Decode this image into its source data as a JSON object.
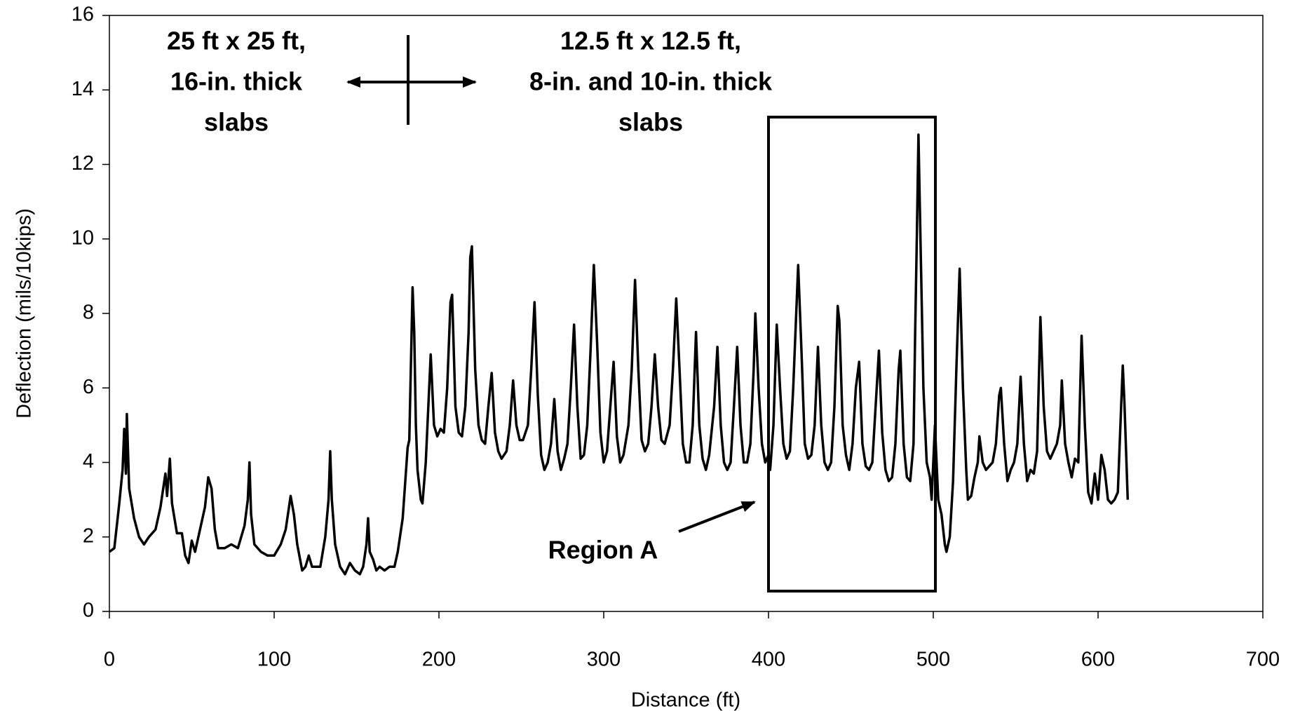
{
  "chart_data": {
    "type": "line",
    "x_label": "Distance (ft)",
    "y_label": "Deflection (mils/10kips)",
    "annotations": [
      {
        "lines": [
          "25 ft x 25 ft,",
          "16-in. thick",
          "slabs"
        ]
      },
      {
        "lines": [
          "12.5 ft x 12.5 ft,",
          "8-in. and 10-in. thick",
          "slabs"
        ]
      },
      {
        "lines": [
          "Region A"
        ]
      }
    ],
    "xlim": [
      0,
      700
    ],
    "xticks": [
      0,
      100,
      200,
      300,
      400,
      500,
      600,
      700
    ],
    "ylim": [
      0,
      16
    ],
    "yticks": [
      0,
      2,
      4,
      6,
      8,
      10,
      12,
      14,
      16
    ],
    "grid": false,
    "series": [
      {
        "color": "#000000",
        "x": [
          0,
          3,
          6,
          8,
          9,
          10,
          10.6,
          12,
          15,
          18,
          21,
          24,
          28,
          31,
          34,
          35,
          36.7,
          38,
          41,
          44,
          46,
          48,
          50,
          52,
          55,
          58,
          60,
          62,
          64,
          66,
          70,
          74,
          78,
          82,
          84,
          85,
          86,
          88,
          92,
          96,
          100,
          104,
          107,
          110,
          112,
          114,
          117,
          119,
          121,
          123,
          125,
          128,
          131,
          133,
          134,
          135,
          137,
          140,
          143,
          146,
          149,
          152,
          154,
          156,
          157,
          158,
          160,
          162,
          164,
          167,
          170,
          173,
          175,
          178,
          181,
          182,
          184,
          185,
          186,
          187,
          189,
          190,
          192,
          195,
          197,
          199,
          201,
          203,
          205,
          207,
          208,
          210,
          212,
          214,
          216,
          218,
          219,
          220,
          222,
          224,
          226,
          228,
          230,
          232,
          234,
          236,
          238,
          241,
          243,
          245,
          247,
          249,
          251,
          254,
          256,
          258,
          260,
          262,
          264,
          266,
          268,
          270,
          272,
          274,
          276,
          278,
          280,
          282,
          284,
          286,
          288,
          290,
          292,
          294,
          296,
          298,
          300,
          302,
          304,
          306,
          308,
          310,
          312,
          315,
          317,
          319,
          321,
          323,
          325,
          327,
          329,
          331,
          333,
          335,
          337,
          340,
          342,
          344,
          346,
          348,
          350,
          352,
          354,
          356,
          358,
          360,
          362,
          364,
          367,
          369,
          371,
          373,
          375,
          377,
          379,
          381,
          383,
          385,
          387,
          389,
          391,
          392,
          394,
          396,
          398,
          400,
          401,
          403,
          405,
          407,
          409,
          411,
          413,
          415,
          418,
          420,
          422,
          424,
          426,
          428,
          430,
          432,
          434,
          436,
          438,
          440,
          442,
          443,
          445,
          447,
          449,
          451,
          453,
          455,
          457,
          459,
          461,
          463,
          465,
          467,
          469,
          471,
          473,
          475,
          477,
          479,
          480,
          482,
          484,
          486,
          488,
          489,
          490,
          491,
          492,
          494,
          496,
          498,
          499,
          501,
          503,
          505,
          507,
          508,
          510,
          512,
          514,
          516,
          518,
          520,
          521,
          523,
          525,
          527,
          528,
          530,
          532,
          534,
          536,
          538,
          540,
          541,
          543,
          545,
          547,
          549,
          551,
          553,
          555,
          557,
          559,
          561,
          563,
          565,
          567,
          569,
          571,
          573,
          575,
          577,
          578,
          580,
          582,
          584,
          586,
          588,
          590,
          592,
          594,
          596,
          598,
          600,
          602,
          604,
          606,
          608,
          610,
          612,
          614,
          615,
          616,
          618
        ],
        "values": [
          1.6,
          1.7,
          2.9,
          3.8,
          4.9,
          3.7,
          5.3,
          3.3,
          2.5,
          2.0,
          1.8,
          2.0,
          2.2,
          2.8,
          3.7,
          3.1,
          4.1,
          2.9,
          2.1,
          2.1,
          1.5,
          1.3,
          1.9,
          1.6,
          2.2,
          2.8,
          3.6,
          3.3,
          2.2,
          1.7,
          1.7,
          1.8,
          1.7,
          2.3,
          3.0,
          4.0,
          2.6,
          1.8,
          1.6,
          1.5,
          1.5,
          1.8,
          2.2,
          3.1,
          2.6,
          1.8,
          1.1,
          1.2,
          1.5,
          1.2,
          1.2,
          1.2,
          2.0,
          3.0,
          4.3,
          3.0,
          1.8,
          1.2,
          1.0,
          1.3,
          1.1,
          1.0,
          1.2,
          1.8,
          2.5,
          1.6,
          1.4,
          1.1,
          1.2,
          1.1,
          1.2,
          1.2,
          1.6,
          2.5,
          4.4,
          4.6,
          8.7,
          7.5,
          5.0,
          3.8,
          3.0,
          2.9,
          4.0,
          6.9,
          5.0,
          4.7,
          4.9,
          4.8,
          6.0,
          8.3,
          8.5,
          5.5,
          4.8,
          4.7,
          5.5,
          7.5,
          9.5,
          9.8,
          6.5,
          5.0,
          4.6,
          4.5,
          5.5,
          6.4,
          4.8,
          4.3,
          4.1,
          4.3,
          5.0,
          6.2,
          5.0,
          4.6,
          4.6,
          5.0,
          6.5,
          8.3,
          5.8,
          4.2,
          3.8,
          4.0,
          4.5,
          5.7,
          4.3,
          3.8,
          4.1,
          4.5,
          6.0,
          7.7,
          5.5,
          4.1,
          4.2,
          5.0,
          7.0,
          9.3,
          7.2,
          4.8,
          4.0,
          4.3,
          5.5,
          6.7,
          4.7,
          4.0,
          4.2,
          5.0,
          6.5,
          8.9,
          6.5,
          4.6,
          4.3,
          4.5,
          5.5,
          6.9,
          5.5,
          4.6,
          4.5,
          5.0,
          6.5,
          8.4,
          6.5,
          4.5,
          4.0,
          4.0,
          5.0,
          7.5,
          5.0,
          4.1,
          3.8,
          4.2,
          5.5,
          7.1,
          5.0,
          4.0,
          3.8,
          4.0,
          5.5,
          7.1,
          5.0,
          4.0,
          4.0,
          4.5,
          6.5,
          8.0,
          6.0,
          4.5,
          4.0,
          4.2,
          3.8,
          5.0,
          7.7,
          6.0,
          4.5,
          4.1,
          4.3,
          6.0,
          9.3,
          7.0,
          4.5,
          4.1,
          4.2,
          5.0,
          7.1,
          5.0,
          4.0,
          3.8,
          4.0,
          5.5,
          8.2,
          7.8,
          5.0,
          4.2,
          3.8,
          4.5,
          6.0,
          6.7,
          4.5,
          3.9,
          3.8,
          4.0,
          5.5,
          7.0,
          4.8,
          3.8,
          3.5,
          3.6,
          4.5,
          6.5,
          7.0,
          4.5,
          3.6,
          3.5,
          4.5,
          7.5,
          10.0,
          12.8,
          10.5,
          6.0,
          4.0,
          3.6,
          3.0,
          5.0,
          3.0,
          2.6,
          1.8,
          1.6,
          2.0,
          3.5,
          6.5,
          9.2,
          6.0,
          3.8,
          3.0,
          3.1,
          3.6,
          4.0,
          4.7,
          4.0,
          3.8,
          3.9,
          4.0,
          4.5,
          5.8,
          6.0,
          4.5,
          3.5,
          3.8,
          4.0,
          4.5,
          6.3,
          4.5,
          3.5,
          3.8,
          3.7,
          4.3,
          7.9,
          5.5,
          4.3,
          4.1,
          4.3,
          4.5,
          5.0,
          6.2,
          4.5,
          4.0,
          3.6,
          4.1,
          4.0,
          7.4,
          5.0,
          3.2,
          2.9,
          3.7,
          3.0,
          4.2,
          3.8,
          3.0,
          2.9,
          3.0,
          3.2,
          5.5,
          6.6,
          5.6,
          3.0
        ]
      }
    ]
  }
}
